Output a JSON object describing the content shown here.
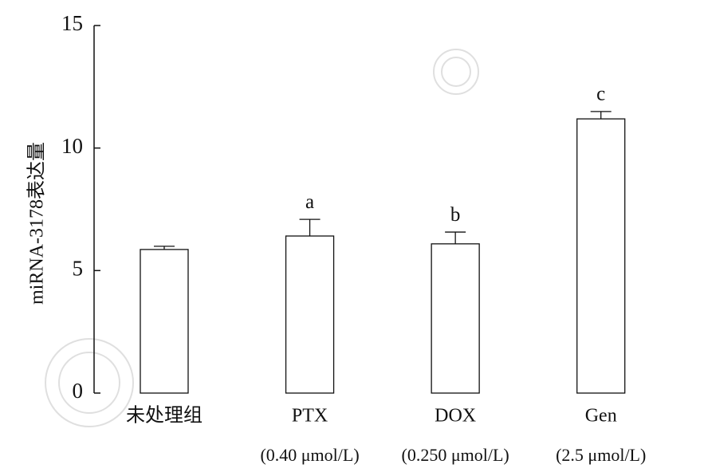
{
  "chart_data": {
    "type": "bar",
    "y_label": "miRNA-3178表达量",
    "categories": [
      "未处理组",
      "PTX",
      "DOX",
      "Gen"
    ],
    "category_sublabels": [
      null,
      "(0.40 μmol/L)",
      "(0.250 μmol/L)",
      "(2.5 μmol/L)"
    ],
    "values": [
      5.86,
      6.41,
      6.09,
      11.19
    ],
    "errors": [
      0.13,
      0.68,
      0.48,
      0.3
    ],
    "significance_labels": [
      null,
      "a",
      "b",
      "c"
    ],
    "color": "#ffffff",
    "edge_color": "#111111",
    "ylim": [
      0,
      15
    ],
    "yticks": [
      0,
      5,
      10,
      15
    ],
    "grid": false
  }
}
